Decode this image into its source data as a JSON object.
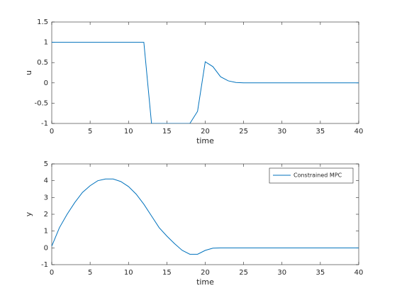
{
  "chart_data": [
    {
      "type": "line",
      "xlabel": "time",
      "ylabel": "u",
      "x": [
        0,
        1,
        2,
        3,
        4,
        5,
        6,
        7,
        8,
        9,
        10,
        11,
        12,
        13,
        14,
        15,
        16,
        17,
        18,
        19,
        20,
        21,
        22,
        23,
        24,
        25,
        26,
        27,
        28,
        29,
        30,
        31,
        32,
        33,
        34,
        35,
        36,
        37,
        38,
        39,
        40
      ],
      "series": [
        {
          "color": "#0072bd",
          "values": [
            1,
            1,
            1,
            1,
            1,
            1,
            1,
            1,
            1,
            1,
            1,
            1,
            1,
            -1,
            -1,
            -1,
            -1,
            -1,
            -1,
            -0.7,
            0.52,
            0.4,
            0.15,
            0.05,
            0.01,
            0,
            0,
            0,
            0,
            0,
            0,
            0,
            0,
            0,
            0,
            0,
            0,
            0,
            0,
            0,
            0
          ]
        }
      ],
      "xlim": [
        0,
        40
      ],
      "xticks": [
        0,
        5,
        10,
        15,
        20,
        25,
        30,
        35,
        40
      ],
      "ylim": [
        -1,
        1.5
      ],
      "yticks": [
        -1,
        -0.5,
        0,
        0.5,
        1,
        1.5
      ]
    },
    {
      "type": "line",
      "xlabel": "time",
      "ylabel": "y",
      "x": [
        0,
        1,
        2,
        3,
        4,
        5,
        6,
        7,
        8,
        9,
        10,
        11,
        12,
        13,
        14,
        15,
        16,
        17,
        18,
        19,
        20,
        21,
        22,
        23,
        24,
        25,
        26,
        27,
        28,
        29,
        30,
        31,
        32,
        33,
        34,
        35,
        36,
        37,
        38,
        39,
        40
      ],
      "series": [
        {
          "name": "Constrained MPC",
          "color": "#0072bd",
          "values": [
            0.1,
            1.2,
            2.0,
            2.7,
            3.3,
            3.7,
            4.0,
            4.1,
            4.1,
            3.95,
            3.65,
            3.2,
            2.6,
            1.9,
            1.2,
            0.7,
            0.25,
            -0.15,
            -0.38,
            -0.38,
            -0.15,
            -0.02,
            0,
            0,
            0,
            0,
            0,
            0,
            0,
            0,
            0,
            0,
            0,
            0,
            0,
            0,
            0,
            0,
            0,
            0,
            0
          ]
        }
      ],
      "xlim": [
        0,
        40
      ],
      "xticks": [
        0,
        5,
        10,
        15,
        20,
        25,
        30,
        35,
        40
      ],
      "ylim": [
        -1,
        5
      ],
      "yticks": [
        -1,
        0,
        1,
        2,
        3,
        4,
        5
      ],
      "legend": "northeast"
    }
  ]
}
